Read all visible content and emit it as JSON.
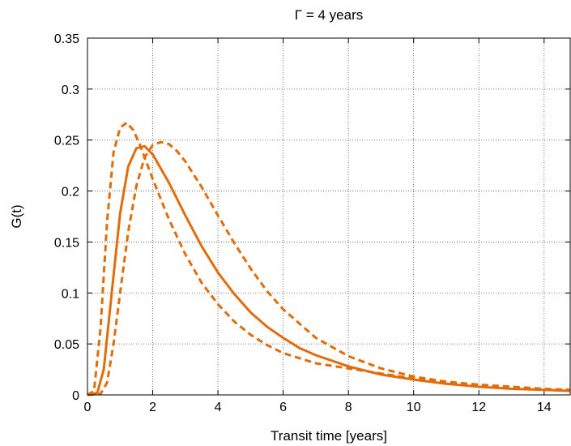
{
  "chart_data": {
    "type": "line",
    "title": "Γ = 4 years",
    "xlabel": "Transit time [years]",
    "ylabel": "G(t)",
    "xlim": [
      0,
      14.8
    ],
    "ylim": [
      0,
      0.35
    ],
    "xticks": [
      0,
      2,
      4,
      6,
      8,
      10,
      12,
      14
    ],
    "xtick_labels": [
      "0",
      "2",
      "4",
      "6",
      "8",
      "10",
      "12",
      "14"
    ],
    "yticks": [
      0,
      0.05,
      0.1,
      0.15,
      0.2,
      0.25,
      0.3,
      0.35
    ],
    "ytick_labels": [
      "0",
      "0.05",
      "0.1",
      "0.15",
      "0.2",
      "0.25",
      "0.3",
      "0.35"
    ],
    "grid": true,
    "legend": "none",
    "series": [
      {
        "style": "solid",
        "color": "#e36c0a",
        "x": [
          0,
          0.3,
          0.5,
          0.75,
          1.0,
          1.25,
          1.5,
          1.75,
          2.0,
          2.5,
          3.0,
          3.5,
          4.0,
          4.5,
          5.0,
          5.5,
          6.0,
          6.5,
          7.0,
          8.0,
          9.0,
          10.0,
          11.0,
          12.0,
          13.0,
          14.0,
          14.8
        ],
        "y": [
          0,
          0.002,
          0.025,
          0.102,
          0.178,
          0.224,
          0.242,
          0.244,
          0.236,
          0.208,
          0.176,
          0.146,
          0.12,
          0.099,
          0.081,
          0.067,
          0.056,
          0.046,
          0.039,
          0.028,
          0.02,
          0.015,
          0.011,
          0.008,
          0.006,
          0.005,
          0.004
        ]
      },
      {
        "style": "dashed",
        "color": "#e36c0a",
        "x": [
          0,
          0.2,
          0.4,
          0.6,
          0.8,
          1.0,
          1.2,
          1.4,
          1.6,
          2.0,
          2.5,
          3.0,
          3.5,
          4.0,
          4.5,
          5.0,
          5.5,
          6.0,
          7.0,
          8.0,
          9.0,
          10.0,
          11.0,
          12.0,
          13.0,
          14.0,
          14.8
        ],
        "y": [
          0,
          0.004,
          0.065,
          0.17,
          0.238,
          0.262,
          0.267,
          0.26,
          0.246,
          0.212,
          0.172,
          0.138,
          0.11,
          0.089,
          0.072,
          0.059,
          0.049,
          0.041,
          0.031,
          0.026,
          0.021,
          0.016,
          0.013,
          0.01,
          0.008,
          0.006,
          0.005
        ]
      },
      {
        "style": "dashed",
        "color": "#e36c0a",
        "x": [
          0,
          0.4,
          0.6,
          0.8,
          1.0,
          1.25,
          1.5,
          1.75,
          2.0,
          2.25,
          2.5,
          2.75,
          3.0,
          3.5,
          4.0,
          4.5,
          5.0,
          5.5,
          6.0,
          7.0,
          8.0,
          9.0,
          10.0,
          11.0,
          12.0,
          13.0,
          14.0,
          14.8
        ],
        "y": [
          0,
          0.001,
          0.012,
          0.05,
          0.1,
          0.16,
          0.205,
          0.233,
          0.245,
          0.248,
          0.246,
          0.239,
          0.229,
          0.204,
          0.176,
          0.149,
          0.124,
          0.102,
          0.084,
          0.056,
          0.038,
          0.026,
          0.018,
          0.013,
          0.009,
          0.007,
          0.005,
          0.004
        ]
      }
    ]
  }
}
